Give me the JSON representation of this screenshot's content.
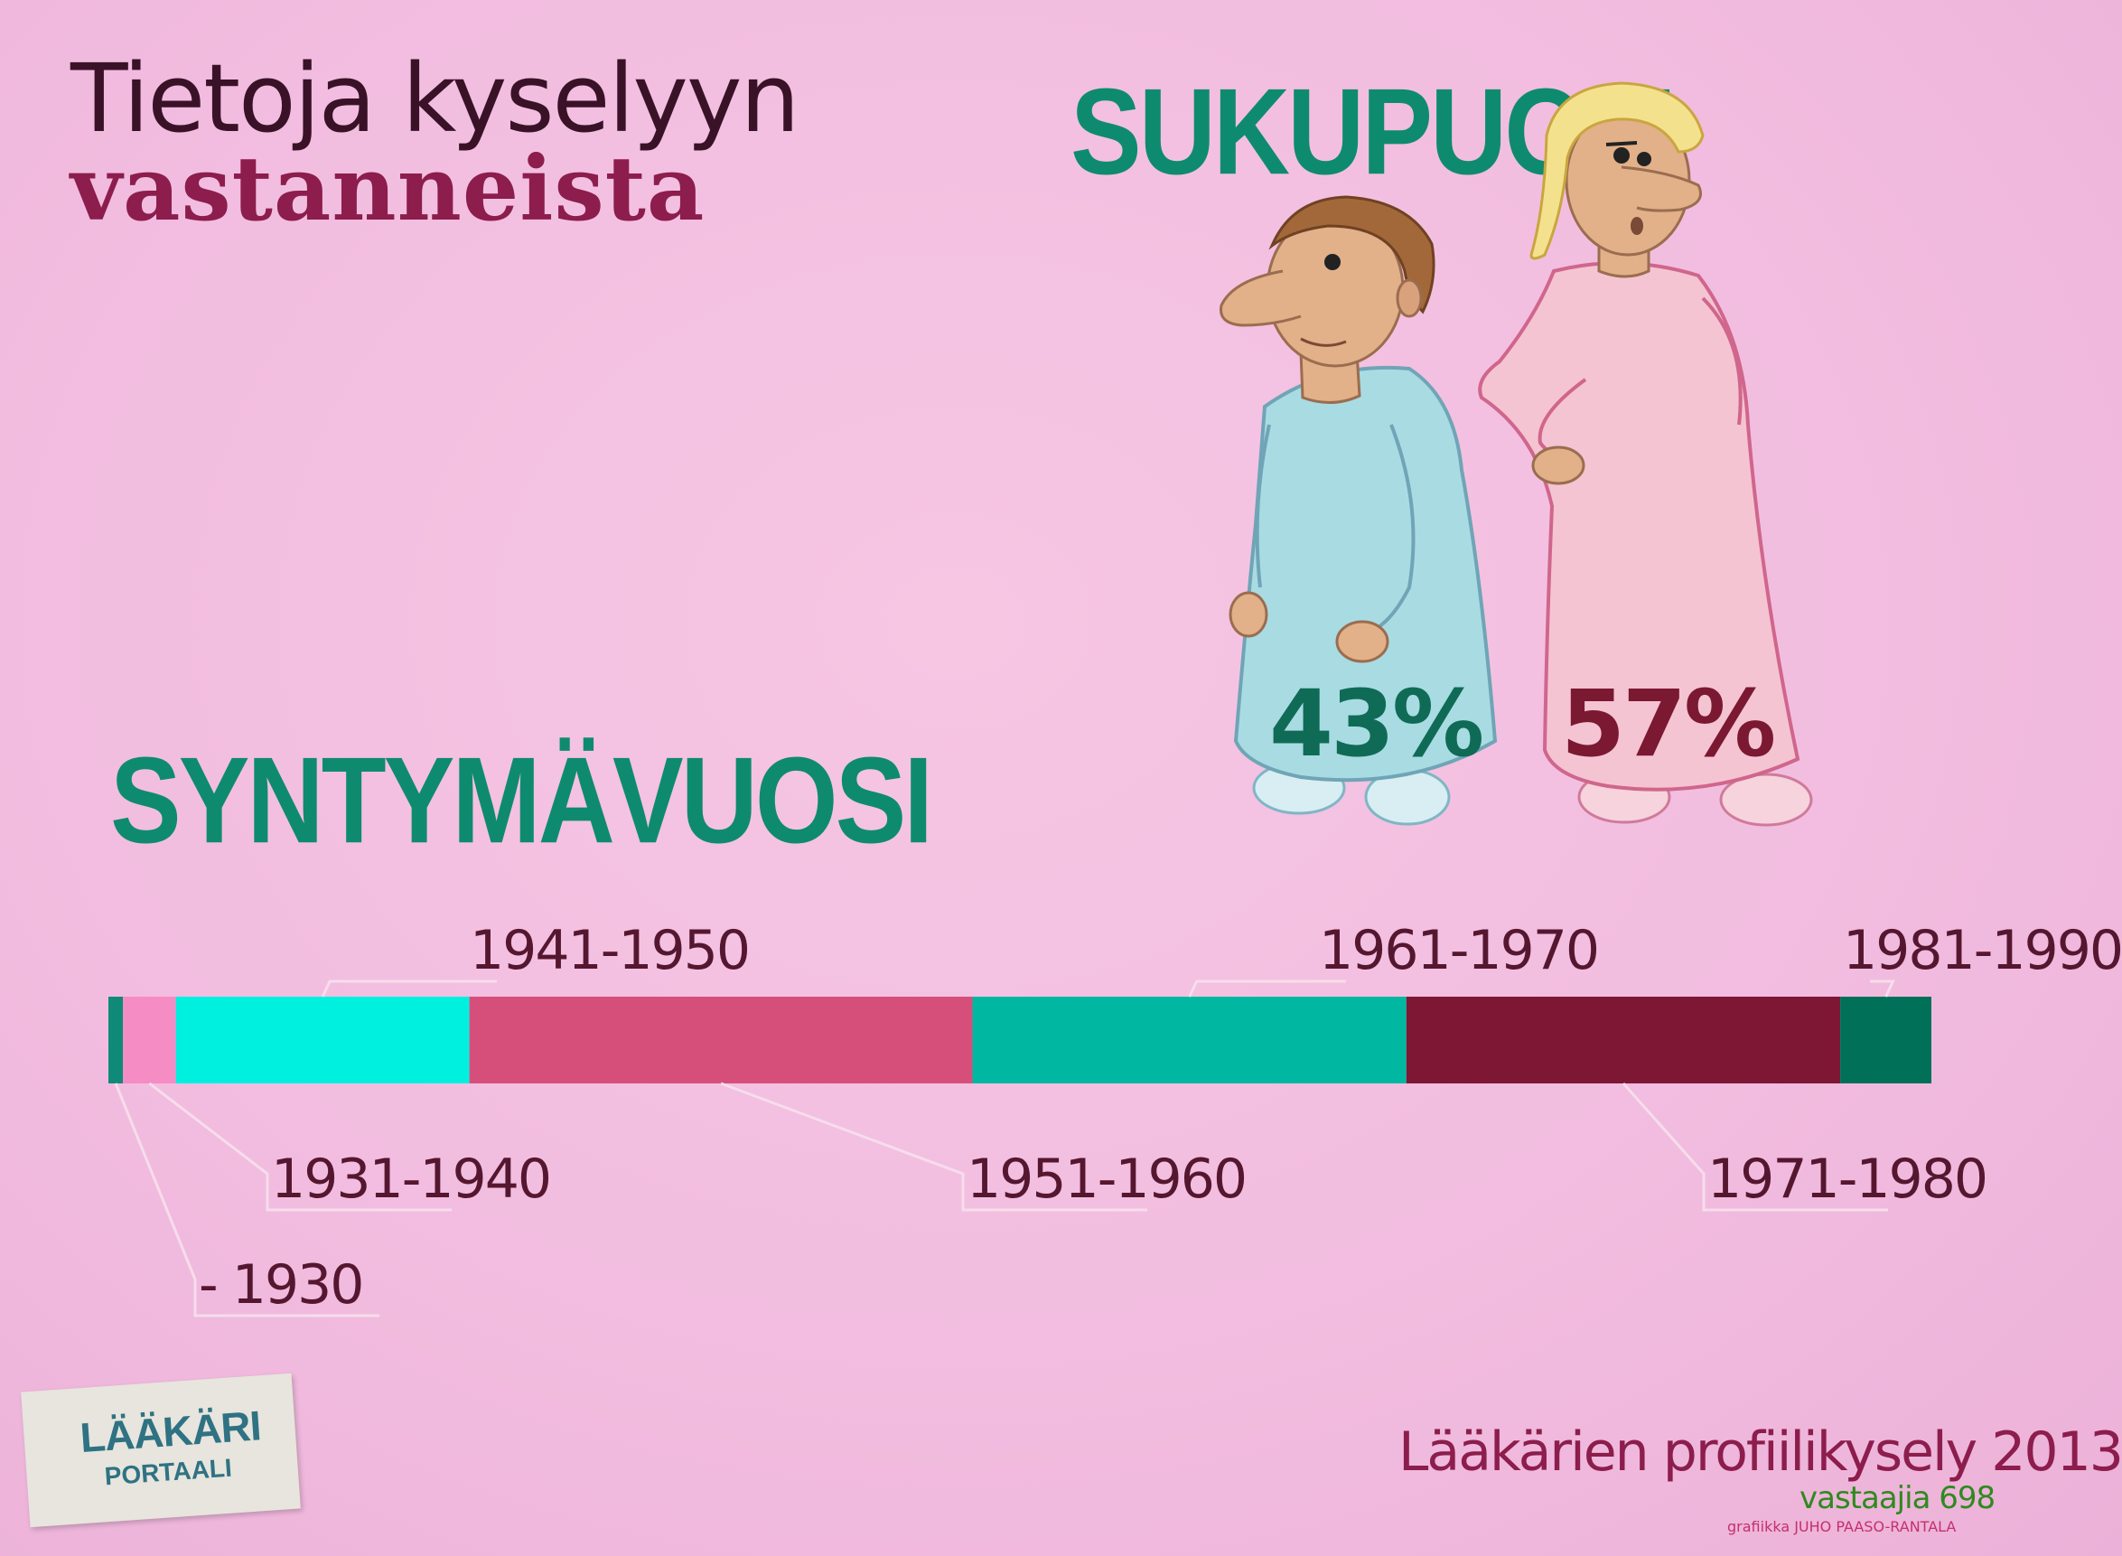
{
  "title": {
    "line1": "Tietoja kyselyyn",
    "line2": "vastanneista"
  },
  "gender": {
    "heading": "SUKUPUOLI",
    "male_pct": "43%",
    "female_pct": "57%"
  },
  "birth_year": {
    "heading": "SYNTYMÄVUOSI"
  },
  "logo": {
    "line1": "LÄÄKÄRI",
    "line2": "PORTAALI"
  },
  "footer": {
    "survey": "Lääkärien profiilikysely 2013",
    "respondents": "vastaajia 698",
    "credit": "grafiikka JUHO PAASO-RANTALA"
  },
  "colors": {
    "background": "#f3bfe0",
    "male_gown": "#a9dbe3",
    "female_gown": "#f5c4d2",
    "heading": "#0e8b6e"
  },
  "chart_data": [
    {
      "type": "pie",
      "title": "SUKUPUOLI",
      "categories": [
        "",
        ""
      ],
      "values": [
        43,
        57
      ],
      "colors": [
        "#a9dbe3",
        "#f5c4d2"
      ],
      "icons": [
        "male-figure",
        "female-figure"
      ]
    },
    {
      "type": "bar",
      "orientation": "stacked-horizontal",
      "title": "SYNTYMÄVUOSI",
      "categories": [
        "- 1930",
        "1931-1940",
        "1941-1950",
        "1951-1960",
        "1961-1970",
        "1971-1980",
        "1981-1990"
      ],
      "values": [
        0.8,
        2.9,
        16.1,
        27.6,
        23.8,
        23.8,
        5.0
      ],
      "unit": "%",
      "colors": [
        "#0f8a78",
        "#f58cc4",
        "#00f0e0",
        "#d64f7a",
        "#00b8a2",
        "#7d1734",
        "#007058"
      ],
      "label_side": [
        "below",
        "below",
        "above",
        "below",
        "above",
        "below",
        "above"
      ]
    }
  ]
}
